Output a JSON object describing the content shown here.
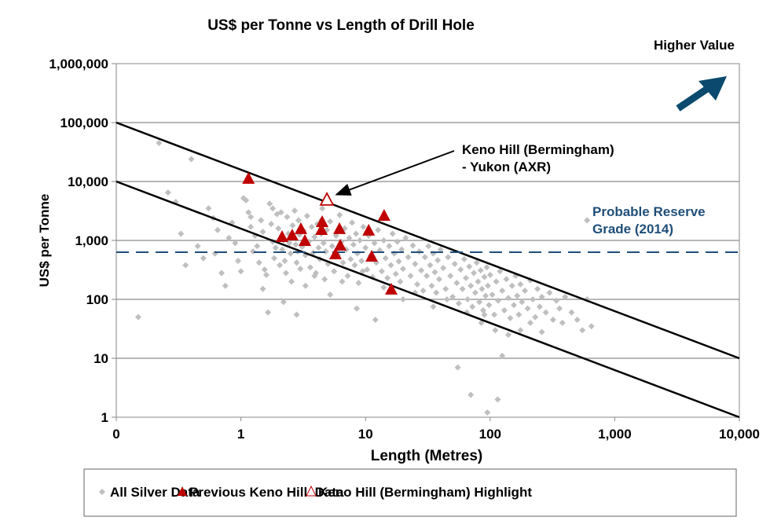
{
  "chart_data": {
    "type": "scatter",
    "title": "US$ per Tonne vs Length of Drill Hole",
    "xlabel": "Length (Metres)",
    "ylabel": "US$ per Tonne",
    "xscale": "log",
    "yscale": "log",
    "xlim": [
      0.1,
      10000
    ],
    "ylim": [
      1,
      1000000
    ],
    "x_ticks": [
      {
        "value": 0.1,
        "label": "0"
      },
      {
        "value": 1,
        "label": "1"
      },
      {
        "value": 10,
        "label": "10"
      },
      {
        "value": 100,
        "label": "100"
      },
      {
        "value": 1000,
        "label": "1,000"
      },
      {
        "value": 10000,
        "label": "10,000"
      }
    ],
    "y_ticks": [
      {
        "value": 1,
        "label": "1"
      },
      {
        "value": 10,
        "label": "10"
      },
      {
        "value": 100,
        "label": "100"
      },
      {
        "value": 1000,
        "label": "1,000"
      },
      {
        "value": 10000,
        "label": "10,000"
      },
      {
        "value": 100000,
        "label": "100,000"
      },
      {
        "value": 1000000,
        "label": "1,000,000"
      }
    ],
    "grid": "horizontal",
    "legend_position": "bottom",
    "reference_lines": [
      {
        "name": "upper-bound",
        "points": [
          [
            0.1,
            100000
          ],
          [
            10000,
            10
          ]
        ],
        "color": "#000000"
      },
      {
        "name": "lower-bound",
        "points": [
          [
            0.1,
            10000
          ],
          [
            10000,
            1
          ]
        ],
        "color": "#000000"
      }
    ],
    "threshold": {
      "label_line1": "Probable Reserve",
      "label_line2": "Grade (2014)",
      "value": 630,
      "color": "#1f4e79",
      "style": "dashed"
    },
    "annotations": {
      "higher_value": "Higher Value",
      "callout_line1": "Keno Hill (Bermingham)",
      "callout_line2": "- Yukon (AXR)",
      "callout_target": [
        4.9,
        4800
      ],
      "arrow_color": "#0b4a6e"
    },
    "series": [
      {
        "name": "All Silver Data",
        "marker": "diamond",
        "color": "#bfbfbf",
        "points": [
          [
            0.15,
            50
          ],
          [
            0.22,
            45000
          ],
          [
            0.26,
            6500
          ],
          [
            0.3,
            4500
          ],
          [
            0.33,
            1300
          ],
          [
            0.36,
            380
          ],
          [
            0.4,
            24000
          ],
          [
            0.45,
            800
          ],
          [
            0.5,
            500
          ],
          [
            0.55,
            3500
          ],
          [
            0.6,
            2400
          ],
          [
            0.62,
            600
          ],
          [
            0.65,
            1500
          ],
          [
            0.7,
            280
          ],
          [
            0.75,
            170
          ],
          [
            0.8,
            1100
          ],
          [
            0.85,
            2000
          ],
          [
            0.9,
            900
          ],
          [
            0.95,
            450
          ],
          [
            1.0,
            300
          ],
          [
            1.05,
            5200
          ],
          [
            1.1,
            4800
          ],
          [
            1.15,
            3000
          ],
          [
            1.2,
            1700
          ],
          [
            1.25,
            650
          ],
          [
            1.3,
            1200
          ],
          [
            1.35,
            800
          ],
          [
            1.4,
            420
          ],
          [
            1.45,
            2200
          ],
          [
            1.5,
            1400
          ],
          [
            1.55,
            320
          ],
          [
            1.6,
            260
          ],
          [
            1.65,
            60
          ],
          [
            1.7,
            4200
          ],
          [
            1.75,
            1900
          ],
          [
            1.8,
            950
          ],
          [
            1.85,
            500
          ],
          [
            1.9,
            750
          ],
          [
            1.95,
            2800
          ],
          [
            2.0,
            1600
          ],
          [
            2.05,
            380
          ],
          [
            2.1,
            3000
          ],
          [
            2.15,
            700
          ],
          [
            2.2,
            1000
          ],
          [
            2.25,
            450
          ],
          [
            2.3,
            280
          ],
          [
            2.35,
            2500
          ],
          [
            2.4,
            1300
          ],
          [
            2.45,
            900
          ],
          [
            2.5,
            600
          ],
          [
            2.55,
            200
          ],
          [
            2.6,
            1800
          ],
          [
            2.65,
            1100
          ],
          [
            2.7,
            3200
          ],
          [
            2.75,
            850
          ],
          [
            2.8,
            420
          ],
          [
            2.85,
            650
          ],
          [
            2.9,
            2200
          ],
          [
            2.95,
            1250
          ],
          [
            3.0,
            330
          ],
          [
            3.1,
            780
          ],
          [
            3.2,
            1450
          ],
          [
            3.3,
            560
          ],
          [
            3.4,
            2600
          ],
          [
            3.5,
            950
          ],
          [
            3.6,
            350
          ],
          [
            3.7,
            1700
          ],
          [
            3.8,
            620
          ],
          [
            3.9,
            1150
          ],
          [
            4.0,
            280
          ],
          [
            4.1,
            1900
          ],
          [
            4.2,
            750
          ],
          [
            4.3,
            480
          ],
          [
            4.4,
            1300
          ],
          [
            4.5,
            3500
          ],
          [
            4.6,
            900
          ],
          [
            4.7,
            220
          ],
          [
            4.8,
            650
          ],
          [
            4.9,
            1500
          ],
          [
            5.0,
            400
          ],
          [
            5.2,
            2100
          ],
          [
            5.4,
            800
          ],
          [
            5.6,
            300
          ],
          [
            5.8,
            1200
          ],
          [
            6.0,
            560
          ],
          [
            6.2,
            2700
          ],
          [
            6.4,
            950
          ],
          [
            6.6,
            420
          ],
          [
            6.8,
            1600
          ],
          [
            7.0,
            700
          ],
          [
            7.2,
            250
          ],
          [
            7.4,
            1100
          ],
          [
            7.6,
            480
          ],
          [
            7.8,
            2000
          ],
          [
            8.0,
            850
          ],
          [
            8.2,
            380
          ],
          [
            8.4,
            1300
          ],
          [
            8.6,
            600
          ],
          [
            8.8,
            190
          ],
          [
            9.0,
            1000
          ],
          [
            9.3,
            450
          ],
          [
            9.6,
            1700
          ],
          [
            10.0,
            750
          ],
          [
            10.3,
            320
          ],
          [
            10.6,
            1200
          ],
          [
            11.0,
            550
          ],
          [
            11.4,
            240
          ],
          [
            11.8,
            900
          ],
          [
            12.2,
            420
          ],
          [
            12.6,
            1500
          ],
          [
            13.0,
            680
          ],
          [
            13.5,
            300
          ],
          [
            14.0,
            1000
          ],
          [
            14.5,
            500
          ],
          [
            15.0,
            230
          ],
          [
            15.5,
            800
          ],
          [
            16.0,
            380
          ],
          [
            16.5,
            1300
          ],
          [
            17.0,
            600
          ],
          [
            17.5,
            270
          ],
          [
            18.0,
            950
          ],
          [
            18.5,
            440
          ],
          [
            19.0,
            200
          ],
          [
            19.5,
            700
          ],
          [
            20.0,
            330
          ],
          [
            21,
            1100
          ],
          [
            22,
            520
          ],
          [
            23,
            250
          ],
          [
            24,
            820
          ],
          [
            25,
            400
          ],
          [
            26,
            180
          ],
          [
            27,
            650
          ],
          [
            28,
            310
          ],
          [
            29,
            140
          ],
          [
            30,
            520
          ],
          [
            31,
            250
          ],
          [
            32,
            800
          ],
          [
            33,
            380
          ],
          [
            34,
            170
          ],
          [
            35,
            600
          ],
          [
            36,
            290
          ],
          [
            37,
            130
          ],
          [
            38,
            460
          ],
          [
            39,
            220
          ],
          [
            40,
            700
          ],
          [
            42,
            340
          ],
          [
            44,
            150
          ],
          [
            46,
            520
          ],
          [
            48,
            250
          ],
          [
            50,
            110
          ],
          [
            52,
            400
          ],
          [
            54,
            190
          ],
          [
            56,
            85
          ],
          [
            58,
            320
          ],
          [
            60,
            150
          ],
          [
            62,
            480
          ],
          [
            64,
            230
          ],
          [
            66,
            100
          ],
          [
            68,
            360
          ],
          [
            70,
            170
          ],
          [
            72,
            75
          ],
          [
            74,
            280
          ],
          [
            76,
            130
          ],
          [
            78,
            420
          ],
          [
            80,
            200
          ],
          [
            82,
            90
          ],
          [
            84,
            310
          ],
          [
            86,
            150
          ],
          [
            88,
            65
          ],
          [
            90,
            240
          ],
          [
            92,
            115
          ],
          [
            94,
            350
          ],
          [
            96,
            170
          ],
          [
            98,
            80
          ],
          [
            100,
            260
          ],
          [
            104,
            120
          ],
          [
            108,
            55
          ],
          [
            112,
            200
          ],
          [
            116,
            95
          ],
          [
            120,
            300
          ],
          [
            125,
            140
          ],
          [
            130,
            65
          ],
          [
            135,
            220
          ],
          [
            140,
            105
          ],
          [
            145,
            48
          ],
          [
            150,
            170
          ],
          [
            155,
            80
          ],
          [
            160,
            250
          ],
          [
            165,
            115
          ],
          [
            170,
            55
          ],
          [
            175,
            180
          ],
          [
            180,
            90
          ],
          [
            190,
            140
          ],
          [
            200,
            70
          ],
          [
            210,
            210
          ],
          [
            220,
            100
          ],
          [
            230,
            50
          ],
          [
            240,
            150
          ],
          [
            250,
            75
          ],
          [
            260,
            110
          ],
          [
            280,
            60
          ],
          [
            300,
            130
          ],
          [
            320,
            45
          ],
          [
            340,
            95
          ],
          [
            360,
            70
          ],
          [
            380,
            40
          ],
          [
            400,
            110
          ],
          [
            450,
            60
          ],
          [
            500,
            45
          ],
          [
            550,
            30
          ],
          [
            600,
            100
          ],
          [
            650,
            35
          ],
          [
            600,
            2200
          ],
          [
            1.5,
            150
          ],
          [
            2.8,
            55
          ],
          [
            5.2,
            120
          ],
          [
            8.5,
            70
          ],
          [
            12,
            45
          ],
          [
            20,
            100
          ],
          [
            35,
            75
          ],
          [
            55,
            7
          ],
          [
            70,
            2.4
          ],
          [
            95,
            1.2
          ],
          [
            115,
            2
          ],
          [
            125,
            11
          ],
          [
            90,
            55
          ],
          [
            6.5,
            200
          ],
          [
            3.3,
            170
          ],
          [
            2.2,
            90
          ],
          [
            1.2,
            2500
          ],
          [
            1.8,
            3500
          ],
          [
            4.4,
            2200
          ],
          [
            3.9,
            250
          ],
          [
            9.5,
            300
          ],
          [
            14,
            160
          ],
          [
            25,
            130
          ],
          [
            45,
            100
          ],
          [
            65,
            60
          ],
          [
            85,
            40
          ],
          [
            110,
            30
          ],
          [
            140,
            25
          ],
          [
            175,
            30
          ],
          [
            210,
            40
          ],
          [
            260,
            28
          ]
        ]
      },
      {
        "name": "Previous Keno Hill  Data",
        "marker": "triangle",
        "color": "#c00000",
        "points": [
          [
            1.15,
            11000
          ],
          [
            2.14,
            1130
          ],
          [
            2.58,
            1200
          ],
          [
            3.03,
            1540
          ],
          [
            3.26,
            970
          ],
          [
            4.49,
            2030
          ],
          [
            4.43,
            1490
          ],
          [
            6.18,
            1540
          ],
          [
            6.27,
            807
          ],
          [
            5.74,
            575
          ],
          [
            10.6,
            1450
          ],
          [
            11.2,
            525
          ],
          [
            14.1,
            2590
          ],
          [
            16.1,
            145
          ]
        ]
      },
      {
        "name": "Keno Hill (Bermingham) Highlight",
        "marker": "triangle-open",
        "color": "#c00000",
        "points": [
          [
            4.9,
            4800
          ]
        ]
      }
    ]
  }
}
